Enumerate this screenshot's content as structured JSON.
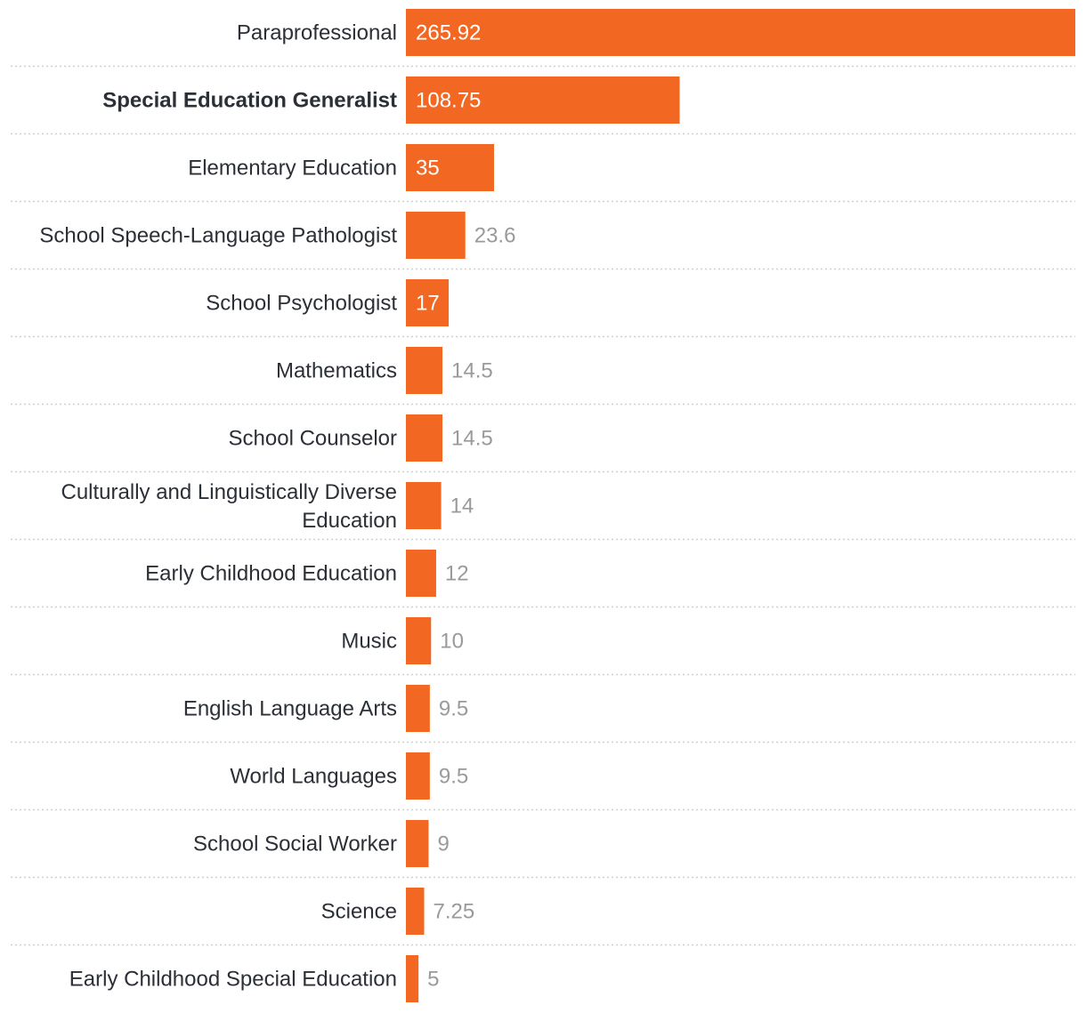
{
  "chart_data": {
    "type": "bar",
    "orientation": "horizontal",
    "categories": [
      "Paraprofessional",
      "Special Education Generalist",
      "Elementary Education",
      "School Speech-Language Pathologist",
      "School Psychologist",
      "Mathematics",
      "School Counselor",
      "Culturally and Linguistically Diverse Education",
      "Early Childhood Education",
      "Music",
      "English Language Arts",
      "World Languages",
      "School Social Worker",
      "Science",
      "Early Childhood Special Education"
    ],
    "values": [
      265.92,
      108.75,
      35,
      23.6,
      17,
      14.5,
      14.5,
      14,
      12,
      10,
      9.5,
      9.5,
      9,
      7.25,
      5
    ],
    "value_labels": [
      "265.92",
      "108.75",
      "35",
      "23.6",
      "17",
      "14.5",
      "14.5",
      "14",
      "12",
      "10",
      "9.5",
      "9.5",
      "9",
      "7.25",
      "5"
    ],
    "highlighted_category": "Special Education Generalist",
    "xlim": [
      0,
      265.92
    ],
    "grid": false,
    "legend": "none",
    "title": "",
    "xlabel": "",
    "ylabel": ""
  },
  "colors": {
    "bar": "#f26722",
    "label_text": "#2b2f36",
    "value_inside": "#ffffff",
    "value_outside": "#9a9a9a",
    "separator": "#cfcfcf"
  }
}
